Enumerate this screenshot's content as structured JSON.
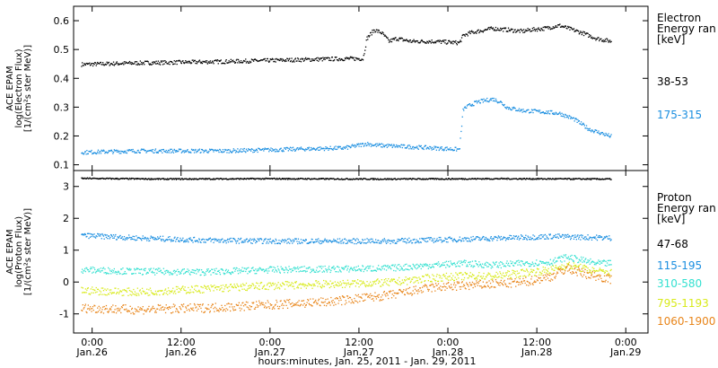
{
  "x_axis": {
    "title": "hours:minutes, Jan. 25, 2011 - Jan. 29, 2011",
    "ticks": [
      {
        "t": 0,
        "time": "0:00",
        "day": "Jan.26"
      },
      {
        "t": 12,
        "time": "12:00",
        "day": "Jan.26"
      },
      {
        "t": 24,
        "time": "0:00",
        "day": "Jan.27"
      },
      {
        "t": 36,
        "time": "12:00",
        "day": "Jan.27"
      },
      {
        "t": 48,
        "time": "0:00",
        "day": "Jan.28"
      },
      {
        "t": 60,
        "time": "12:00",
        "day": "Jan.28"
      },
      {
        "t": 72,
        "time": "0:00",
        "day": "Jan.29"
      }
    ],
    "range_hours": [
      -2.5,
      75
    ]
  },
  "chart_data": [
    {
      "type": "scatter",
      "panel": "electron",
      "ylabel_lines": [
        "ACE EPAM",
        "log(Electron Flux)",
        "[1/(cm²s ster MeV)]"
      ],
      "ylim": [
        0.08,
        0.65
      ],
      "yticks": [
        0.1,
        0.2,
        0.3,
        0.4,
        0.5,
        0.6
      ],
      "ytick_labels": [
        "0.1",
        "0.2",
        "0.3",
        "0.4",
        "0.5",
        "0.6"
      ],
      "legend_title": [
        "Electron",
        "Energy ran",
        "[keV]"
      ],
      "series": [
        {
          "name": "38-53",
          "color": "#000000",
          "x": [
            -1.5,
            6,
            18,
            26,
            34,
            36.5,
            37,
            38,
            39,
            40,
            41,
            43,
            46,
            49.5,
            50,
            51,
            54,
            58,
            59,
            61,
            63,
            66,
            68,
            70
          ],
          "y": [
            0.45,
            0.455,
            0.46,
            0.465,
            0.47,
            0.47,
            0.54,
            0.57,
            0.56,
            0.53,
            0.54,
            0.53,
            0.53,
            0.525,
            0.55,
            0.56,
            0.575,
            0.565,
            0.57,
            0.575,
            0.585,
            0.56,
            0.54,
            0.53
          ]
        },
        {
          "name": "175-315",
          "color": "#1a8ee0",
          "x": [
            -1.5,
            6,
            18,
            26,
            34,
            37,
            38,
            42,
            46,
            49.5,
            50,
            51,
            52,
            54,
            55,
            56,
            58,
            61,
            63,
            65,
            67,
            70
          ],
          "y": [
            0.145,
            0.15,
            0.15,
            0.155,
            0.16,
            0.175,
            0.17,
            0.165,
            0.16,
            0.155,
            0.295,
            0.31,
            0.32,
            0.33,
            0.32,
            0.3,
            0.29,
            0.285,
            0.28,
            0.26,
            0.225,
            0.2
          ]
        }
      ]
    },
    {
      "type": "scatter",
      "panel": "proton",
      "ylabel_lines": [
        "ACE EPAM",
        "log(Proton Flux)",
        "[1/(cm²s ster MeV)]"
      ],
      "ylim": [
        -1.6,
        3.5
      ],
      "yticks": [
        -1,
        0,
        1,
        2,
        3
      ],
      "ytick_labels": [
        "-1",
        "0",
        "1",
        "2",
        "3"
      ],
      "legend_title": [
        "Proton",
        "Energy ran",
        "[keV]"
      ],
      "series": [
        {
          "name": "47-68",
          "color": "#000000",
          "x": [
            -1.5,
            10,
            24,
            40,
            55,
            70
          ],
          "y": [
            3.27,
            3.25,
            3.26,
            3.25,
            3.26,
            3.25
          ]
        },
        {
          "name": "115-195",
          "color": "#1a8ee0",
          "x": [
            -1.5,
            6,
            15,
            24,
            32,
            40,
            48,
            56,
            62,
            70
          ],
          "y": [
            1.48,
            1.4,
            1.33,
            1.3,
            1.3,
            1.3,
            1.35,
            1.4,
            1.45,
            1.4
          ]
        },
        {
          "name": "310-580",
          "color": "#33e0d0",
          "x": [
            -1.5,
            6,
            15,
            24,
            32,
            40,
            46,
            50,
            54,
            58,
            62,
            64,
            66,
            68,
            70
          ],
          "y": [
            0.4,
            0.35,
            0.33,
            0.4,
            0.42,
            0.45,
            0.55,
            0.6,
            0.55,
            0.6,
            0.65,
            0.8,
            0.7,
            0.6,
            0.6
          ]
        },
        {
          "name": "795-1193",
          "color": "#d8ea1a",
          "x": [
            -1.5,
            6,
            15,
            24,
            32,
            40,
            46,
            50,
            54,
            58,
            62,
            64,
            66,
            68,
            70
          ],
          "y": [
            -0.25,
            -0.3,
            -0.2,
            -0.1,
            -0.05,
            0.0,
            0.15,
            0.2,
            0.2,
            0.3,
            0.4,
            0.55,
            0.45,
            0.35,
            0.3
          ]
        },
        {
          "name": "1060-1900",
          "color": "#e8851a",
          "x": [
            -1.5,
            6,
            15,
            24,
            32,
            40,
            46,
            50,
            54,
            58,
            62,
            64,
            66,
            68,
            70
          ],
          "y": [
            -0.8,
            -0.85,
            -0.8,
            -0.7,
            -0.6,
            -0.4,
            -0.15,
            -0.1,
            -0.05,
            0.0,
            0.2,
            0.45,
            0.3,
            0.2,
            0.1
          ]
        }
      ]
    }
  ]
}
